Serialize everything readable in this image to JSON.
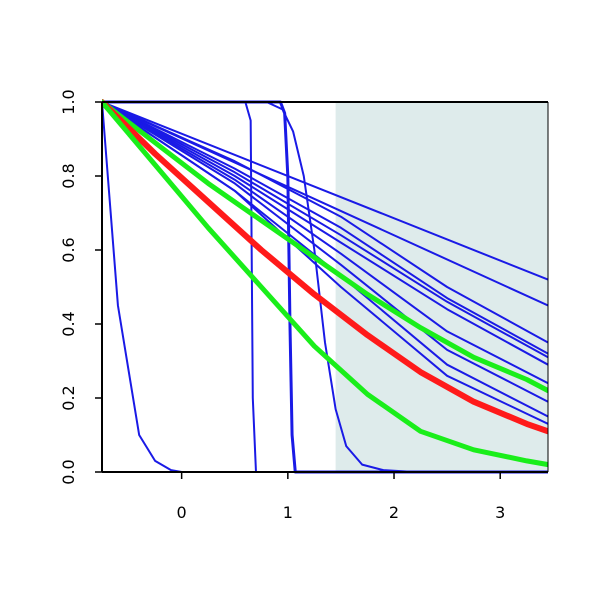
{
  "chart_data": {
    "type": "line",
    "title": "",
    "xlabel": "",
    "ylabel": "",
    "xlim": [
      -0.75,
      3.45
    ],
    "ylim": [
      0,
      1
    ],
    "grid": false,
    "x_ticks": [
      0,
      1,
      2,
      3
    ],
    "y_ticks": [
      0.0,
      0.2,
      0.4,
      0.6,
      0.8,
      1.0
    ],
    "x_tick_labels": [
      "0",
      "1",
      "2",
      "3"
    ],
    "y_tick_labels": [
      "0.0",
      "0.2",
      "0.4",
      "0.6",
      "0.8",
      "1.0"
    ],
    "shaded_region": {
      "x": [
        1.45,
        3.45
      ],
      "y": [
        0,
        1
      ],
      "color": "#deebeb"
    },
    "colors": {
      "blue": "#1a1ae6",
      "red": "#ff1a1a",
      "green": "#1aee1a",
      "axis": "#000000"
    },
    "series": [
      {
        "color": "blue",
        "width": 2,
        "x": [
          -0.75,
          -0.6,
          -0.4,
          -0.25,
          -0.1,
          0.0,
          3.45
        ],
        "y": [
          1.0,
          0.45,
          0.1,
          0.03,
          0.005,
          0.0,
          0.0
        ]
      },
      {
        "color": "blue",
        "width": 2,
        "x": [
          -0.75,
          0.6,
          0.65,
          0.67,
          0.7,
          3.45
        ],
        "y": [
          1.0,
          1.0,
          0.95,
          0.2,
          0.0,
          0.0
        ]
      },
      {
        "color": "blue",
        "width": 3,
        "x": [
          -0.75,
          0.93,
          0.97,
          1.0,
          1.02,
          1.04,
          1.07,
          3.45
        ],
        "y": [
          1.0,
          1.0,
          0.97,
          0.8,
          0.4,
          0.1,
          0.0,
          0.0
        ]
      },
      {
        "color": "blue",
        "width": 2,
        "x": [
          -0.75,
          0.8,
          0.95,
          1.05,
          1.15,
          1.25,
          1.35,
          1.45,
          1.55,
          1.7,
          1.9,
          2.2,
          3.45
        ],
        "y": [
          1.0,
          1.0,
          0.98,
          0.92,
          0.8,
          0.6,
          0.35,
          0.17,
          0.07,
          0.02,
          0.005,
          0.0,
          0.0
        ]
      },
      {
        "color": "blue",
        "width": 2,
        "x": [
          -0.75,
          3.45
        ],
        "y": [
          1.0,
          0.52
        ]
      },
      {
        "color": "blue",
        "width": 2,
        "x": [
          -0.75,
          3.45
        ],
        "y": [
          1.0,
          0.45
        ]
      },
      {
        "color": "blue",
        "width": 2,
        "x": [
          -0.75,
          0.5,
          1.5,
          2.5,
          3.45
        ],
        "y": [
          1.0,
          0.84,
          0.69,
          0.5,
          0.35
        ]
      },
      {
        "color": "blue",
        "width": 2,
        "x": [
          -0.75,
          0.5,
          1.5,
          2.5,
          3.45
        ],
        "y": [
          1.0,
          0.82,
          0.66,
          0.47,
          0.32
        ]
      },
      {
        "color": "blue",
        "width": 2,
        "x": [
          -0.75,
          0.5,
          1.5,
          2.5,
          3.45
        ],
        "y": [
          1.0,
          0.81,
          0.64,
          0.46,
          0.31
        ]
      },
      {
        "color": "blue",
        "width": 2,
        "x": [
          -0.75,
          0.5,
          1.5,
          2.5,
          3.45
        ],
        "y": [
          1.0,
          0.8,
          0.62,
          0.44,
          0.29
        ]
      },
      {
        "color": "blue",
        "width": 2,
        "x": [
          -0.75,
          0.5,
          1.5,
          2.5,
          3.45
        ],
        "y": [
          1.0,
          0.79,
          0.59,
          0.38,
          0.24
        ]
      },
      {
        "color": "blue",
        "width": 2,
        "x": [
          -0.75,
          0.5,
          1.5,
          2.5,
          3.45
        ],
        "y": [
          1.0,
          0.78,
          0.56,
          0.33,
          0.19
        ]
      },
      {
        "color": "blue",
        "width": 2,
        "x": [
          -0.75,
          0.5,
          1.5,
          2.5,
          3.45
        ],
        "y": [
          1.0,
          0.76,
          0.53,
          0.29,
          0.15
        ]
      },
      {
        "color": "blue",
        "width": 2,
        "x": [
          -0.75,
          0.5,
          1.5,
          2.5,
          3.45
        ],
        "y": [
          1.0,
          0.76,
          0.5,
          0.26,
          0.13
        ]
      },
      {
        "color": "green",
        "width": 5,
        "x": [
          -0.75,
          -0.25,
          0.25,
          0.75,
          1.25,
          1.75,
          2.25,
          2.75,
          3.25,
          3.45
        ],
        "y": [
          1.0,
          0.89,
          0.78,
          0.68,
          0.58,
          0.48,
          0.39,
          0.31,
          0.25,
          0.22
        ]
      },
      {
        "color": "red",
        "width": 6,
        "x": [
          -0.75,
          -0.25,
          0.25,
          0.75,
          1.25,
          1.75,
          2.25,
          2.75,
          3.25,
          3.45
        ],
        "y": [
          1.0,
          0.86,
          0.73,
          0.6,
          0.48,
          0.37,
          0.27,
          0.19,
          0.13,
          0.11
        ]
      },
      {
        "color": "green",
        "width": 5,
        "x": [
          -0.75,
          -0.25,
          0.25,
          0.75,
          1.25,
          1.75,
          2.25,
          2.75,
          3.25,
          3.45
        ],
        "y": [
          1.0,
          0.83,
          0.66,
          0.5,
          0.34,
          0.21,
          0.11,
          0.06,
          0.03,
          0.02
        ]
      }
    ]
  }
}
